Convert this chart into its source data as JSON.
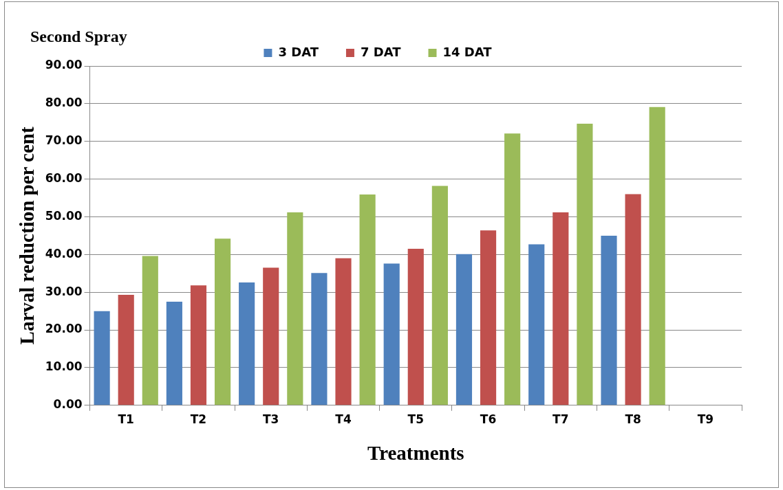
{
  "chart_data": {
    "type": "bar",
    "title": "Second Spray",
    "xlabel": "Treatments",
    "ylabel": "Larval reduction per cent",
    "categories": [
      "T1",
      "T2",
      "T3",
      "T4",
      "T5",
      "T6",
      "T7",
      "T8",
      "T9"
    ],
    "series": [
      {
        "name": "3 DAT",
        "color": "#4f81bd",
        "values": [
          25.0,
          27.5,
          32.6,
          35.1,
          37.6,
          40.1,
          42.7,
          45.0,
          null
        ]
      },
      {
        "name": "7 DAT",
        "color": "#c0504d",
        "values": [
          29.3,
          31.8,
          36.5,
          39.0,
          41.5,
          46.4,
          51.2,
          56.0,
          null
        ]
      },
      {
        "name": "14 DAT",
        "color": "#9bbb59",
        "values": [
          39.6,
          44.2,
          51.2,
          55.9,
          58.2,
          72.1,
          74.7,
          79.1,
          null
        ]
      }
    ],
    "ylim": [
      0,
      90
    ],
    "yticks": [
      {
        "value": 0,
        "label": "0.00"
      },
      {
        "value": 10,
        "label": "10.00"
      },
      {
        "value": 20,
        "label": "20.00"
      },
      {
        "value": 30,
        "label": "30.00"
      },
      {
        "value": 40,
        "label": "40.00"
      },
      {
        "value": 50,
        "label": "50.00"
      },
      {
        "value": 60,
        "label": "60.00"
      },
      {
        "value": 70,
        "label": "70.00"
      },
      {
        "value": 80,
        "label": "80.00"
      },
      {
        "value": 90,
        "label": "90.00"
      }
    ],
    "grid": "y",
    "legend": "top"
  }
}
